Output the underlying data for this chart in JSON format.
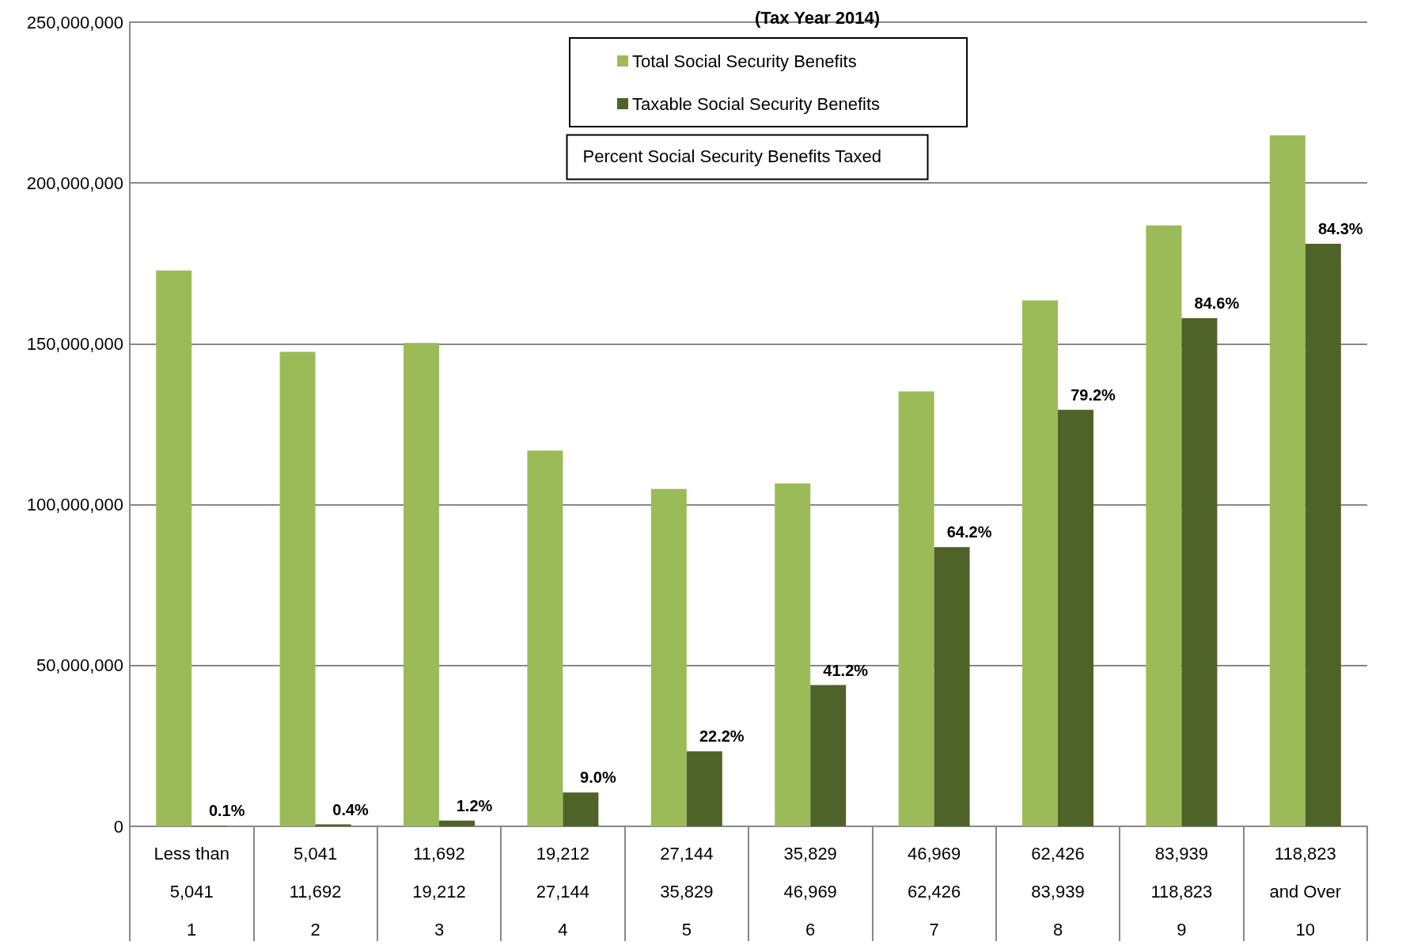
{
  "chart_data": {
    "type": "bar",
    "title": "(Tax Year 2014)",
    "categories": [
      "Less than\n5,041\n1",
      "5,041\n11,692\n2",
      "11,692\n19,212\n3",
      "19,212\n27,144\n4",
      "27,144\n35,829\n5",
      "35,829\n46,969\n6",
      "46,969\n62,426\n7",
      "62,426\n83,939\n8",
      "83,939\n118,823\n9",
      "118,823\nand Over\n10"
    ],
    "series": [
      {
        "name": "Total Social Security Benefits",
        "color": "#9bbb59",
        "values": [
          172800000,
          147500000,
          150300000,
          116800000,
          104900000,
          106600000,
          135200000,
          163500000,
          186800000,
          214800000
        ]
      },
      {
        "name": "Taxable Social Security Benefits",
        "color": "#4f6228",
        "values": [
          200000,
          600000,
          1800000,
          10500000,
          23300000,
          43900000,
          86800000,
          129500000,
          158000000,
          181100000
        ]
      }
    ],
    "annotations": [
      "Percent Social Security Benefits Taxed",
      {
        "text": "0.1%",
        "x": "Less than\n5,041\n1",
        "y": 200000
      },
      {
        "text": "0.4%",
        "x": "5,041\n11,692\n2",
        "y": 600000
      },
      {
        "text": "1.2%",
        "x": "11,692\n19,212\n3",
        "y": 1800000
      },
      {
        "text": "9.0%",
        "x": "19,212\n27,144\n4",
        "y": 10500000
      },
      {
        "text": "22.2%",
        "x": "27,144\n35,829\n5",
        "y": 23300000
      },
      {
        "text": "41.2%",
        "x": "35,829\n46,969\n6",
        "y": 43900000
      },
      {
        "text": "64.2%",
        "x": "46,969\n62,426\n7",
        "y": 86800000
      },
      {
        "text": "79.2%",
        "x": "62,426\n83,939\n8",
        "y": 129500000
      },
      {
        "text": "84.6%",
        "x": "83,939\n118,823\n9",
        "y": 158000000
      },
      {
        "text": "84.3%",
        "x": "118,823\nand Over\n10",
        "y": 181100000
      }
    ],
    "ylim": [
      0,
      250000000
    ],
    "yticks": [
      {
        "value": 0,
        "label": "0"
      },
      {
        "value": 50000000,
        "label": "50,000,000"
      },
      {
        "value": 100000000,
        "label": "100,000,000"
      },
      {
        "value": 150000000,
        "label": "150,000,000"
      },
      {
        "value": 200000000,
        "label": "200,000,000"
      },
      {
        "value": 250000000,
        "label": "250,000,000"
      }
    ],
    "grid": "y",
    "legend": "top"
  }
}
